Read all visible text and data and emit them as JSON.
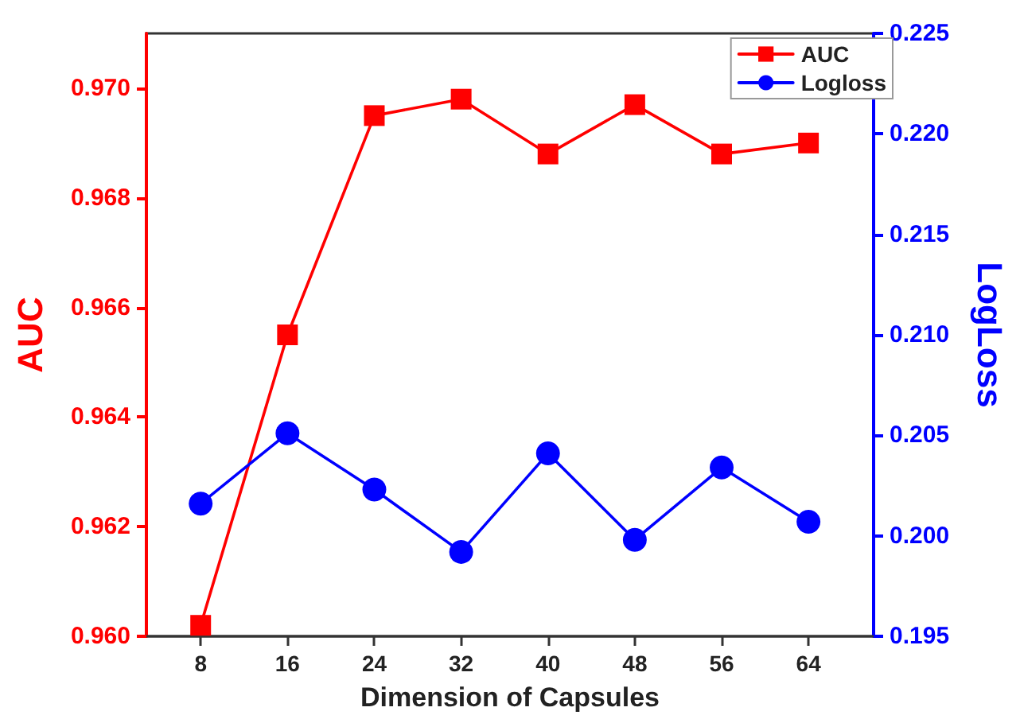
{
  "chart_data": {
    "type": "line",
    "xlabel": "Dimension of Capsules",
    "ylabel": "AUC",
    "y2label": "LogLoss",
    "x": [
      8,
      16,
      24,
      32,
      40,
      48,
      56,
      64
    ],
    "xlim": [
      3,
      70
    ],
    "xticks": [
      8,
      16,
      24,
      32,
      40,
      48,
      56,
      64
    ],
    "ylim": [
      0.96,
      0.971
    ],
    "yticks": [
      {
        "value": 0.96,
        "label": "0.960"
      },
      {
        "value": 0.962,
        "label": "0.962"
      },
      {
        "value": 0.964,
        "label": "0.964"
      },
      {
        "value": 0.966,
        "label": "0.966"
      },
      {
        "value": 0.968,
        "label": "0.968"
      },
      {
        "value": 0.97,
        "label": "0.970"
      }
    ],
    "y2lim": [
      0.195,
      0.225
    ],
    "y2ticks": [
      {
        "value": 0.195,
        "label": "0.195"
      },
      {
        "value": 0.2,
        "label": "0.200"
      },
      {
        "value": 0.205,
        "label": "0.205"
      },
      {
        "value": 0.21,
        "label": "0.210"
      },
      {
        "value": 0.215,
        "label": "0.215"
      },
      {
        "value": 0.22,
        "label": "0.220"
      },
      {
        "value": 0.225,
        "label": "0.225"
      }
    ],
    "series": [
      {
        "name": "AUC",
        "color": "#ff0000",
        "marker": "square",
        "values": [
          0.9602,
          0.9655,
          0.9695,
          0.9698,
          0.9688,
          0.9697,
          0.9688,
          0.969
        ]
      },
      {
        "name": "Logloss",
        "color": "#0000ff",
        "marker": "circle",
        "axis": "y2",
        "values": [
          0.2016,
          0.2051,
          0.2023,
          0.1992,
          0.2041,
          0.1998,
          0.2034,
          0.2007
        ]
      }
    ],
    "grid": false,
    "legend": "top right",
    "line_style": "solid"
  }
}
